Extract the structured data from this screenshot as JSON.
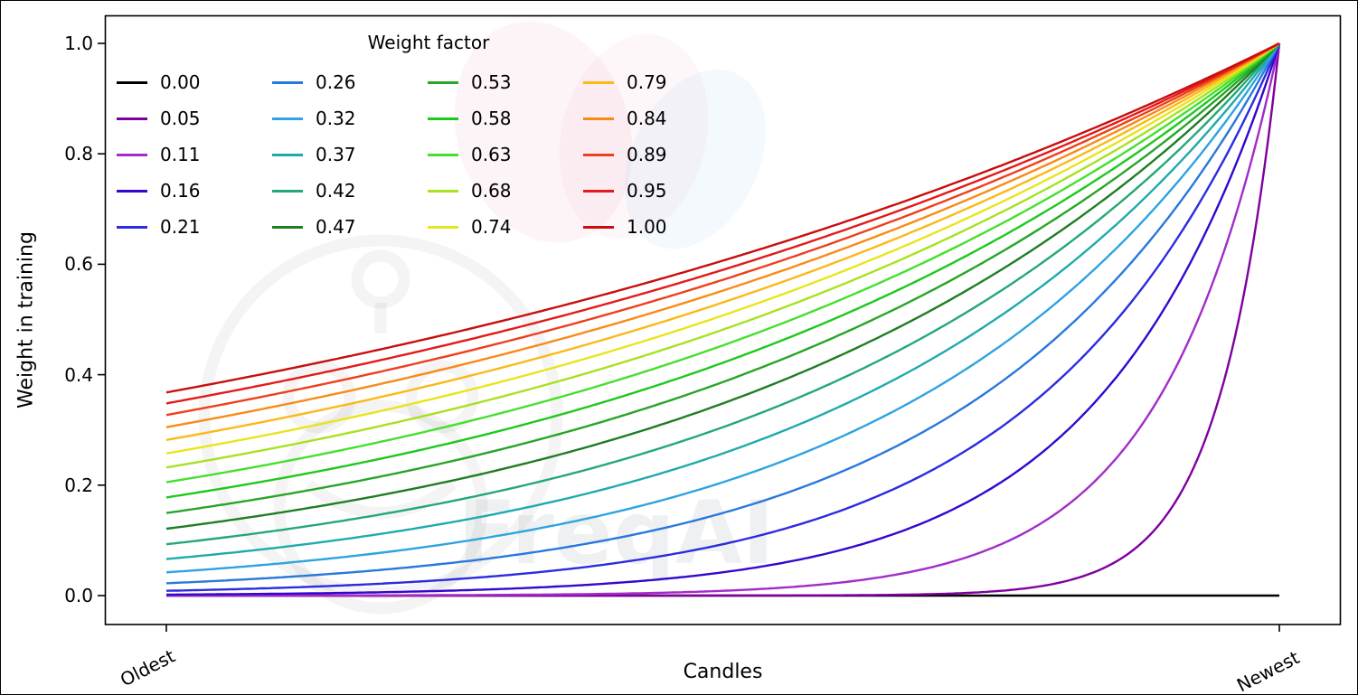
{
  "chart_data": {
    "type": "line",
    "title": "",
    "xlabel": "Candles",
    "ylabel": "Weight in training",
    "x_tick_labels": [
      "Oldest",
      "Newest"
    ],
    "y_ticks": [
      0.0,
      0.2,
      0.4,
      0.6,
      0.8,
      1.0
    ],
    "y_tick_labels": [
      "0.0",
      "0.2",
      "0.4",
      "0.6",
      "0.8",
      "1.0"
    ],
    "ylim": [
      0,
      1
    ],
    "x_range_note": "x normalized from 0 at Oldest candle to 1 at Newest candle",
    "formula": "weight(x) = exp(-(1 - x) / weight_factor); weight_factor = 0 stays flat at 0",
    "legend_title": "Weight factor",
    "legend_position": "upper left, 4 columns, column-major",
    "grid": false,
    "series": [
      {
        "label": "0.00",
        "factor": 0.0,
        "color": "#000000",
        "oldest_value": 0.0,
        "newest_value": 0.0
      },
      {
        "label": "0.05",
        "factor": 0.052632,
        "color": "#80009d",
        "oldest_value": 0.0,
        "newest_value": 1.0
      },
      {
        "label": "0.11",
        "factor": 0.105263,
        "color": "#a22cc8",
        "oldest_value": 0.0001,
        "newest_value": 1.0
      },
      {
        "label": "0.16",
        "factor": 0.157895,
        "color": "#3407cf",
        "oldest_value": 0.0018,
        "newest_value": 1.0
      },
      {
        "label": "0.21",
        "factor": 0.210526,
        "color": "#2b2be0",
        "oldest_value": 0.0087,
        "newest_value": 1.0
      },
      {
        "label": "0.26",
        "factor": 0.263158,
        "color": "#2878dc",
        "oldest_value": 0.0224,
        "newest_value": 1.0
      },
      {
        "label": "0.32",
        "factor": 0.315789,
        "color": "#2fa3e0",
        "oldest_value": 0.0421,
        "newest_value": 1.0
      },
      {
        "label": "0.37",
        "factor": 0.368421,
        "color": "#1faaad",
        "oldest_value": 0.0663,
        "newest_value": 1.0
      },
      {
        "label": "0.42",
        "factor": 0.421053,
        "color": "#23a876",
        "oldest_value": 0.093,
        "newest_value": 1.0
      },
      {
        "label": "0.47",
        "factor": 0.473684,
        "color": "#1e7d23",
        "oldest_value": 0.1211,
        "newest_value": 1.0
      },
      {
        "label": "0.53",
        "factor": 0.526316,
        "color": "#27a527",
        "oldest_value": 0.1496,
        "newest_value": 1.0
      },
      {
        "label": "0.58",
        "factor": 0.578947,
        "color": "#1ec81e",
        "oldest_value": 0.1778,
        "newest_value": 1.0
      },
      {
        "label": "0.63",
        "factor": 0.631579,
        "color": "#45e02d",
        "oldest_value": 0.2053,
        "newest_value": 1.0
      },
      {
        "label": "0.68",
        "factor": 0.684211,
        "color": "#a8e122",
        "oldest_value": 0.2319,
        "newest_value": 1.0
      },
      {
        "label": "0.74",
        "factor": 0.736842,
        "color": "#e8e51c",
        "oldest_value": 0.2574,
        "newest_value": 1.0
      },
      {
        "label": "0.79",
        "factor": 0.789474,
        "color": "#fbb917",
        "oldest_value": 0.2818,
        "newest_value": 1.0
      },
      {
        "label": "0.84",
        "factor": 0.842105,
        "color": "#f98a18",
        "oldest_value": 0.305,
        "newest_value": 1.0
      },
      {
        "label": "0.89",
        "factor": 0.894737,
        "color": "#ee3f1c",
        "oldest_value": 0.327,
        "newest_value": 1.0
      },
      {
        "label": "0.95",
        "factor": 0.947368,
        "color": "#e31a1a",
        "oldest_value": 0.348,
        "newest_value": 1.0
      },
      {
        "label": "1.00",
        "factor": 1.0,
        "color": "#c90d0d",
        "oldest_value": 0.3679,
        "newest_value": 1.0
      }
    ]
  },
  "watermark": {
    "text": "FreqAI"
  }
}
